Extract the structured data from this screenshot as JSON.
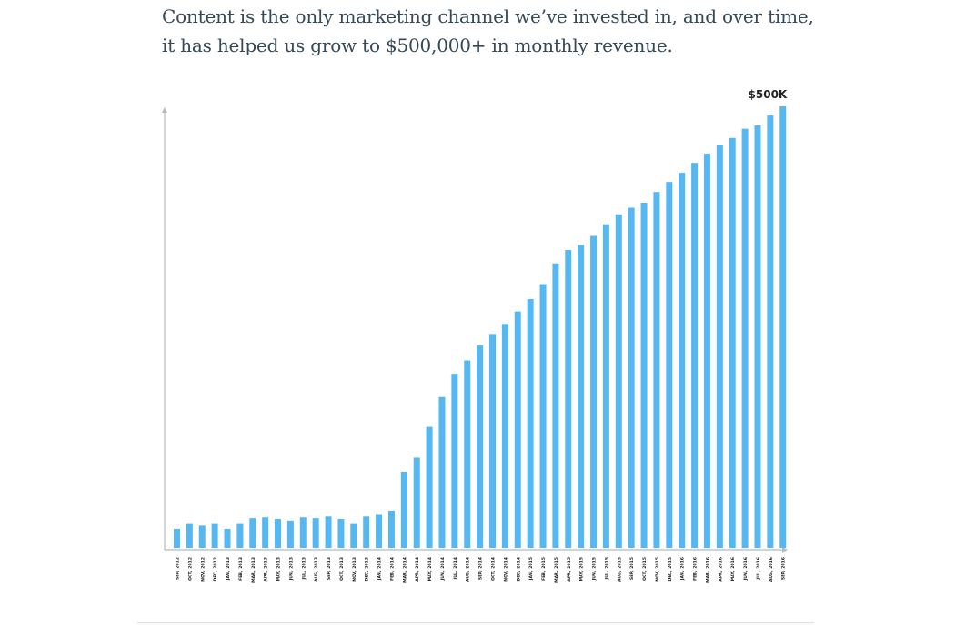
{
  "intro": {
    "line1": "Content is the only marketing channel we’ve invested in, and over time,",
    "line2": "it has helped us grow to $500,000+ in monthly revenue."
  },
  "colors": {
    "bar": "#56b8f2",
    "axis": "#b9b9b9",
    "text": "#344a5a",
    "label": "#222222"
  },
  "chart_data": {
    "type": "bar",
    "title": "",
    "xlabel": "",
    "ylabel": "",
    "ylim": [
      0,
      510
    ],
    "grid": false,
    "legend": "none",
    "peak_label": "$500K",
    "categories": [
      "SEP, 2012",
      "OCT, 2012",
      "NOV, 2012",
      "DEC, 2012",
      "JAN, 2013",
      "FEB, 2013",
      "MAR, 2013",
      "APR, 2013",
      "MAY, 2013",
      "JUN, 2013",
      "JUL, 2013",
      "AUG, 2013",
      "SEP, 2013",
      "OCT, 2013",
      "NOV, 2013",
      "DEC, 2013",
      "JAN, 2014",
      "FEB, 2014",
      "MAR, 2014",
      "APR, 2014",
      "MAY, 2014",
      "JUN, 2014",
      "JUL, 2014",
      "AUG, 2014",
      "SEP, 2014",
      "OCT, 2014",
      "NOV, 2014",
      "DEC, 2014",
      "JAN, 2015",
      "FEB, 2015",
      "MAR, 2015",
      "APR, 2015",
      "MAY, 2015",
      "JUN, 2015",
      "JUL, 2015",
      "AUG, 2015",
      "SEP, 2015",
      "OCT, 2015",
      "NOV, 2015",
      "DEC, 2015",
      "JAN, 2016",
      "FEB, 2016",
      "MAR, 2016",
      "APR, 2016",
      "MAY, 2016",
      "JUN, 2016",
      "JUL, 2016",
      "AUG, 2016",
      "SEP, 2016"
    ],
    "values": [
      23,
      30,
      27,
      30,
      23,
      30,
      36,
      37,
      35,
      33,
      37,
      36,
      38,
      35,
      30,
      38,
      41,
      45,
      92,
      109,
      146,
      182,
      210,
      226,
      244,
      258,
      270,
      285,
      300,
      318,
      343,
      359,
      365,
      376,
      390,
      402,
      410,
      416,
      429,
      441,
      452,
      464,
      475,
      485,
      494,
      505,
      509,
      521,
      532
    ]
  }
}
